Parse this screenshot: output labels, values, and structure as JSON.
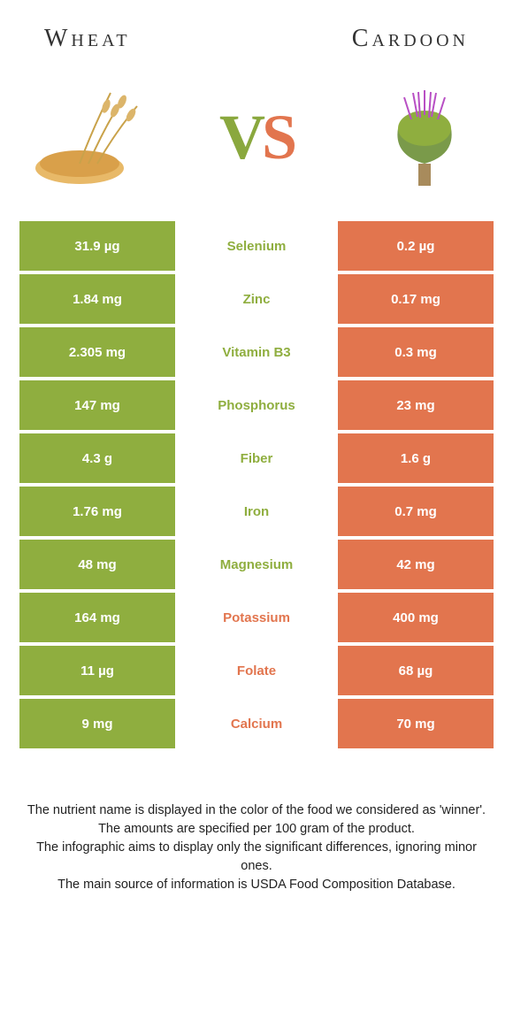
{
  "header": {
    "left_title": "Wheat",
    "right_title": "Cardoon"
  },
  "vs": {
    "v": "V",
    "s": "S"
  },
  "colors": {
    "left_bg": "#8fae3f",
    "right_bg": "#e2754e",
    "mid_text_green": "#8fae3f",
    "mid_text_orange": "#e2754e"
  },
  "rows": [
    {
      "left": "31.9 µg",
      "mid": "Selenium",
      "right": "0.2 µg",
      "winner": "left"
    },
    {
      "left": "1.84 mg",
      "mid": "Zinc",
      "right": "0.17 mg",
      "winner": "left"
    },
    {
      "left": "2.305 mg",
      "mid": "Vitamin B3",
      "right": "0.3 mg",
      "winner": "left"
    },
    {
      "left": "147 mg",
      "mid": "Phosphorus",
      "right": "23 mg",
      "winner": "left"
    },
    {
      "left": "4.3 g",
      "mid": "Fiber",
      "right": "1.6 g",
      "winner": "left"
    },
    {
      "left": "1.76 mg",
      "mid": "Iron",
      "right": "0.7 mg",
      "winner": "left"
    },
    {
      "left": "48 mg",
      "mid": "Magnesium",
      "right": "42 mg",
      "winner": "left"
    },
    {
      "left": "164 mg",
      "mid": "Potassium",
      "right": "400 mg",
      "winner": "right"
    },
    {
      "left": "11 µg",
      "mid": "Folate",
      "right": "68 µg",
      "winner": "right"
    },
    {
      "left": "9 mg",
      "mid": "Calcium",
      "right": "70 mg",
      "winner": "right"
    }
  ],
  "footer": {
    "line1": "The nutrient name is displayed in the color of the food we considered as 'winner'.",
    "line2": "The amounts are specified per 100 gram of the product.",
    "line3": "The infographic aims to display only the significant differences, ignoring minor ones.",
    "line4": "The main source of information is USDA Food Composition Database."
  }
}
